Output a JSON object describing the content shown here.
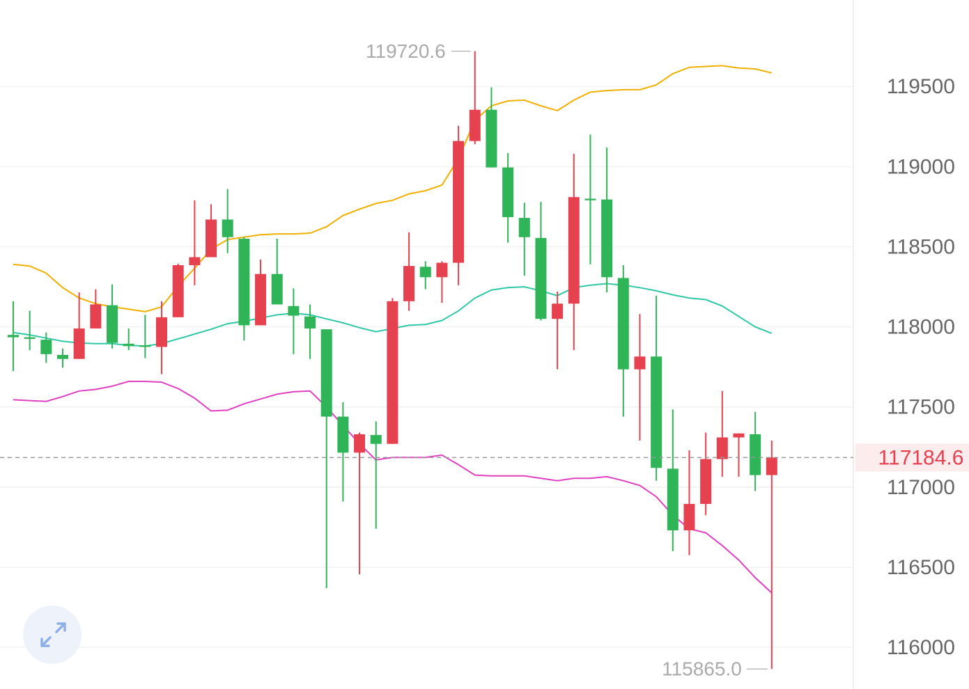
{
  "chart_data": {
    "type": "candlestick",
    "up_color": "#e5414f",
    "down_color": "#2fb457",
    "open": [
      117950,
      117935,
      117920,
      117825,
      117800,
      117990,
      118135,
      117895,
      117885,
      117875,
      118060,
      118385,
      118435,
      118670,
      118550,
      118010,
      118330,
      118130,
      118065,
      117985,
      117440,
      117215,
      117325,
      117270,
      118160,
      118375,
      118310,
      118400,
      119160,
      119355,
      118995,
      118680,
      118555,
      118050,
      118145,
      118800,
      118795,
      118305,
      117735,
      117815,
      117115,
      116730,
      116895,
      117175,
      117310,
      117330,
      117075
    ],
    "high": [
      118160,
      118100,
      117965,
      117865,
      118215,
      118235,
      118265,
      117990,
      118075,
      118160,
      118395,
      118790,
      118765,
      118860,
      118560,
      118420,
      118550,
      118240,
      118140,
      117985,
      117530,
      117340,
      117410,
      118180,
      118590,
      118410,
      118410,
      119255,
      119720.6,
      119495,
      119085,
      118775,
      118780,
      118220,
      119080,
      119200,
      119120,
      118385,
      118080,
      118195,
      117485,
      117230,
      117340,
      117600,
      117335,
      117470,
      117290
    ],
    "low": [
      117725,
      117855,
      117775,
      117745,
      117800,
      117990,
      117865,
      117855,
      117805,
      117705,
      118060,
      118260,
      118435,
      118460,
      117915,
      118010,
      118140,
      117830,
      117800,
      116370,
      116910,
      116455,
      116740,
      117270,
      118100,
      118235,
      118150,
      118260,
      119140,
      118995,
      118525,
      118320,
      118040,
      117735,
      117855,
      118390,
      118215,
      117440,
      117290,
      117040,
      116600,
      116575,
      116825,
      117065,
      117065,
      116975,
      115865
    ],
    "close": [
      117935,
      117925,
      117830,
      117800,
      117990,
      118140,
      117900,
      117880,
      117875,
      118060,
      118385,
      118435,
      118670,
      118560,
      118010,
      118330,
      118140,
      118070,
      117990,
      117440,
      117215,
      117330,
      117270,
      118160,
      118380,
      118310,
      118400,
      119160,
      119355,
      118995,
      118685,
      118560,
      118050,
      118145,
      118810,
      118790,
      118310,
      117735,
      117815,
      117120,
      116730,
      116895,
      117175,
      117310,
      117335,
      117075,
      117184.6
    ],
    "max_label": "119720.6",
    "min_label": "115865.0",
    "last_price_label": "117184.6",
    "overlays": [
      {
        "color": "#f0b000",
        "values": [
          118390,
          118380,
          118335,
          118245,
          118180,
          118145,
          118125,
          118110,
          118095,
          118125,
          118255,
          118365,
          118485,
          118545,
          118560,
          118575,
          118580,
          118580,
          118585,
          118625,
          118695,
          118735,
          118770,
          118790,
          118830,
          118850,
          118885,
          119050,
          119290,
          119380,
          119410,
          119415,
          119380,
          119350,
          119415,
          119465,
          119475,
          119480,
          119480,
          119510,
          119580,
          119620,
          119625,
          119630,
          119615,
          119610,
          119585
        ]
      },
      {
        "color": "#2ec8a6",
        "values": [
          117965,
          117950,
          117930,
          117910,
          117900,
          117895,
          117895,
          117885,
          117880,
          117895,
          117925,
          117955,
          117985,
          118020,
          118035,
          118055,
          118075,
          118085,
          118075,
          118050,
          118025,
          117995,
          117970,
          117990,
          118010,
          118015,
          118040,
          118100,
          118180,
          118230,
          118245,
          118250,
          118225,
          118195,
          118245,
          118260,
          118270,
          118260,
          118245,
          118225,
          118200,
          118180,
          118170,
          118130,
          118065,
          118000,
          117960
        ]
      },
      {
        "color": "#e040c0",
        "values": [
          117545,
          117540,
          117535,
          117565,
          117600,
          117610,
          117630,
          117660,
          117660,
          117655,
          117615,
          117555,
          117475,
          117480,
          117520,
          117550,
          117580,
          117595,
          117600,
          117500,
          117385,
          117270,
          117170,
          117185,
          117185,
          117185,
          117200,
          117140,
          117075,
          117070,
          117070,
          117070,
          117055,
          117040,
          117055,
          117055,
          117065,
          117040,
          117010,
          116940,
          116825,
          116740,
          116715,
          116635,
          116545,
          116435,
          116340
        ]
      }
    ],
    "ylim": [
      115740,
      120040
    ],
    "yticks": [
      116000,
      116500,
      117000,
      117500,
      118000,
      118500,
      119000,
      119500
    ],
    "grid": true
  }
}
